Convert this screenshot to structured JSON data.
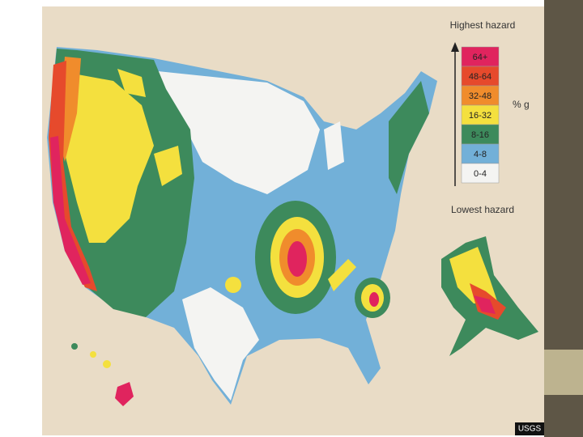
{
  "legend": {
    "title_high": "Highest hazard",
    "classes": [
      {
        "label": "64+",
        "color": "#e0245e"
      },
      {
        "label": "48-64",
        "color": "#e64a2c"
      },
      {
        "label": "32-48",
        "color": "#f08c2c"
      },
      {
        "label": "16-32",
        "color": "#f4e03e"
      },
      {
        "label": "8-16",
        "color": "#3d8a5c"
      },
      {
        "label": "4-8",
        "color": "#72b0d8"
      },
      {
        "label": "0-4",
        "color": "#f4f4f2"
      }
    ],
    "unit": "% g",
    "title_low": "Lowest hazard"
  },
  "credit": "USGS"
}
